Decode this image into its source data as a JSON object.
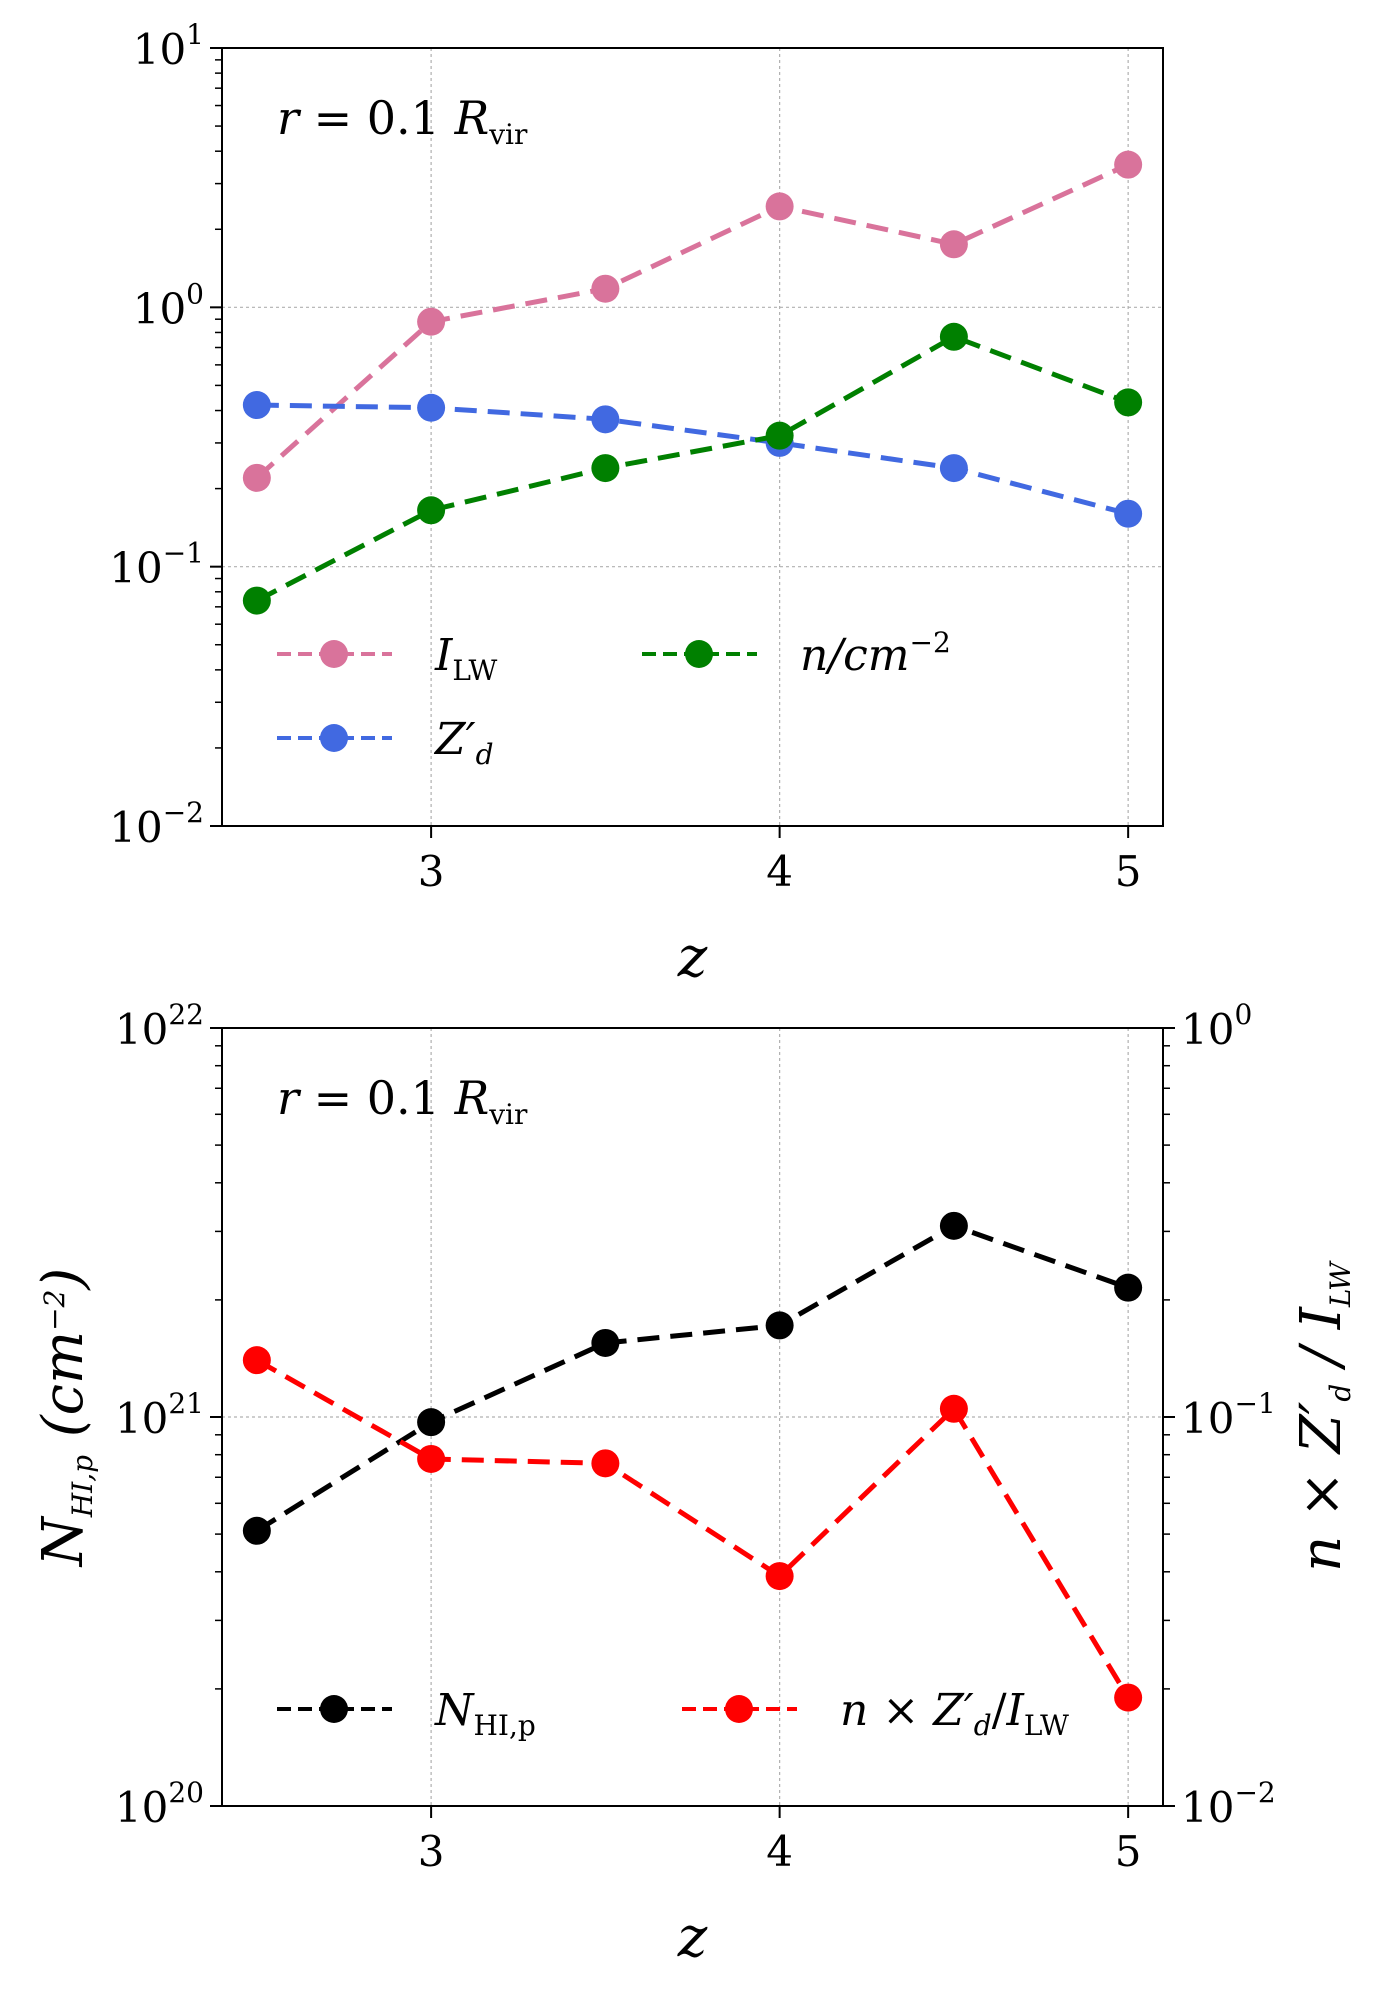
{
  "chart_data": [
    {
      "type": "line",
      "scale": "log",
      "annotation": "r = 0.1 R_vir",
      "annotation_parts": {
        "prefix": "r = 0.1 ",
        "main": "R",
        "sub": "vir"
      },
      "xlabel": "z",
      "x": [
        2.5,
        3.0,
        3.5,
        4.0,
        4.5,
        5.0
      ],
      "xlim": [
        2.4,
        5.1
      ],
      "xticks": [
        3,
        4,
        5
      ],
      "xtick_labels": [
        "3",
        "4",
        "5"
      ],
      "ylim": [
        0.01,
        10
      ],
      "yticks": [
        0.01,
        0.1,
        1,
        10
      ],
      "ytick_labels": [
        {
          "base": "10",
          "exp": "−2"
        },
        {
          "base": "10",
          "exp": "−1"
        },
        {
          "base": "10",
          "exp": "0"
        },
        {
          "base": "10",
          "exp": "1"
        }
      ],
      "grid": true,
      "legend_position": "lower-left",
      "series": [
        {
          "name": "I_LW",
          "label": {
            "main": "I",
            "sub": "LW"
          },
          "color": "#d9739b",
          "values": [
            0.22,
            0.88,
            1.18,
            2.45,
            1.75,
            3.55
          ]
        },
        {
          "name": "Z'_d",
          "label": {
            "main": "Z′",
            "sub": "d"
          },
          "color": "#4169e1",
          "values": [
            0.42,
            0.41,
            0.37,
            0.3,
            0.24,
            0.16
          ]
        },
        {
          "name": "n/cm^-2",
          "label": {
            "main": "n/cm",
            "sup": "−2"
          },
          "color": "#008000",
          "values": [
            0.074,
            0.165,
            0.24,
            0.32,
            0.77,
            0.43
          ]
        }
      ]
    },
    {
      "type": "line",
      "scale": "log",
      "twin_axes": true,
      "annotation": "r = 0.1 R_vir",
      "annotation_parts": {
        "prefix": "r = 0.1 ",
        "main": "R",
        "sub": "vir"
      },
      "xlabel": "z",
      "x": [
        2.5,
        3.0,
        3.5,
        4.0,
        4.5,
        5.0
      ],
      "xlim": [
        2.4,
        5.1
      ],
      "xticks": [
        3,
        4,
        5
      ],
      "xtick_labels": [
        "3",
        "4",
        "5"
      ],
      "ylabel_left": {
        "main": "N",
        "sub": "HI,p",
        "unit": " (cm",
        "unit_sup": "−2",
        "unit_close": ")"
      },
      "ylabel_right": {
        "prefix": "n × ",
        "main": "Z′",
        "sub": "d",
        "mid": " / ",
        "main2": "I",
        "sub2": "LW"
      },
      "ylim_left": [
        1e+20,
        1e+22
      ],
      "ylim_right": [
        0.01,
        1
      ],
      "yticks_left_labels": [
        {
          "base": "10",
          "exp": "20"
        },
        {
          "base": "10",
          "exp": "21"
        },
        {
          "base": "10",
          "exp": "22"
        }
      ],
      "yticks_right_labels": [
        {
          "base": "10",
          "exp": "−2"
        },
        {
          "base": "10",
          "exp": "−1"
        },
        {
          "base": "10",
          "exp": "0"
        }
      ],
      "grid": true,
      "legend_position": "lower-center",
      "series": [
        {
          "name": "N_HI,p",
          "axis": "left",
          "label": {
            "main": "N",
            "sub": "HI,p"
          },
          "color": "#000000",
          "values": [
            5.1e+20,
            9.7e+20,
            1.55e+21,
            1.72e+21,
            3.1e+21,
            2.15e+21
          ]
        },
        {
          "name": "n × Z'_d/I_LW",
          "axis": "right",
          "label": {
            "prefix": "n × ",
            "main": "Z′",
            "sub": "d",
            "mid": "/",
            "main2": "I",
            "sub2": "LW"
          },
          "color": "#ff0000",
          "values": [
            0.14,
            0.078,
            0.076,
            0.039,
            0.105,
            0.019
          ]
        }
      ]
    }
  ]
}
